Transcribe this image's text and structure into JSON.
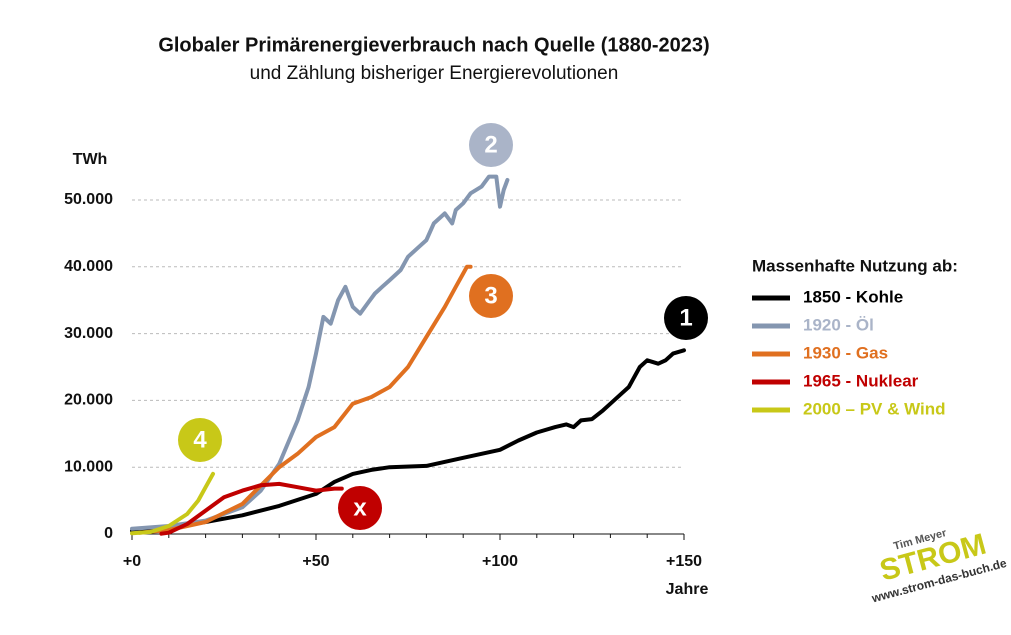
{
  "chart_data": {
    "type": "line",
    "title": "Globaler Primärenergieverbrauch nach Quelle (1880-2023)",
    "subtitle": "und Zählung bisheriger Energierevolutionen",
    "y_label": "TWh",
    "x_label": "Jahre",
    "legend_title": "Massenhafte Nutzung ab:",
    "xlim": [
      0,
      150
    ],
    "ylim": [
      0,
      55000
    ],
    "xticks": [
      {
        "value": 0,
        "label": "+0"
      },
      {
        "value": 50,
        "label": "+50"
      },
      {
        "value": 100,
        "label": "+100"
      },
      {
        "value": 150,
        "label": "+150"
      }
    ],
    "xminor_ticks": [
      10,
      20,
      30,
      40,
      60,
      70,
      80,
      90,
      110,
      120,
      130,
      140
    ],
    "yticks": [
      {
        "value": 0,
        "label": "0"
      },
      {
        "value": 10000,
        "label": "10.000"
      },
      {
        "value": 20000,
        "label": "20.000"
      },
      {
        "value": 30000,
        "label": "30.000"
      },
      {
        "value": 40000,
        "label": "40.000"
      },
      {
        "value": 50000,
        "label": "50.000"
      }
    ],
    "grid": true,
    "series": [
      {
        "name": "1850 - Kohle",
        "color": "#000000",
        "label_color": "#000000",
        "x": [
          0,
          10,
          20,
          30,
          40,
          50,
          55,
          60,
          65,
          70,
          80,
          90,
          100,
          105,
          110,
          115,
          118,
          120,
          122,
          125,
          128,
          130,
          133,
          135,
          138,
          140,
          143,
          145,
          147,
          150
        ],
        "values": [
          500,
          1000,
          1800,
          2800,
          4200,
          6000,
          7800,
          9000,
          9600,
          10000,
          10200,
          11400,
          12600,
          14000,
          15200,
          16000,
          16400,
          16000,
          17000,
          17200,
          18500,
          19500,
          21000,
          22000,
          25000,
          26000,
          25500,
          26000,
          27000,
          27500
        ]
      },
      {
        "name": "1920 - Öl",
        "color": "#8496b0",
        "label_color": "#aab4c8",
        "x": [
          0,
          10,
          20,
          30,
          35,
          40,
          45,
          48,
          50,
          52,
          54,
          56,
          58,
          60,
          62,
          64,
          66,
          68,
          70,
          73,
          75,
          78,
          80,
          82,
          85,
          87,
          88,
          90,
          92,
          95,
          97,
          99,
          100,
          101,
          102
        ],
        "values": [
          800,
          1200,
          2000,
          4000,
          6500,
          10500,
          17000,
          22000,
          27000,
          32500,
          31500,
          35000,
          37000,
          34000,
          33000,
          34500,
          36000,
          37000,
          38000,
          39500,
          41500,
          43000,
          44000,
          46500,
          48000,
          46500,
          48500,
          49500,
          51000,
          52000,
          53500,
          53500,
          49000,
          51500,
          53000
        ]
      },
      {
        "name": "1930 - Gas",
        "color": "#e07020",
        "label_color": "#e07020",
        "x": [
          2,
          10,
          20,
          30,
          40,
          45,
          50,
          55,
          60,
          65,
          70,
          75,
          80,
          85,
          88,
          90,
          91,
          92
        ],
        "values": [
          200,
          600,
          1800,
          4500,
          10000,
          12000,
          14500,
          16000,
          19500,
          20500,
          22000,
          25000,
          29500,
          34000,
          37000,
          39000,
          40000,
          40000
        ]
      },
      {
        "name": "1965 - Nuklear",
        "color": "#c00000",
        "label_color": "#c00000",
        "x": [
          8,
          10,
          15,
          20,
          25,
          30,
          35,
          40,
          45,
          50,
          55,
          57
        ],
        "values": [
          50,
          200,
          1500,
          3500,
          5500,
          6500,
          7300,
          7500,
          7000,
          6500,
          6800,
          6800
        ]
      },
      {
        "name": "2000 – PV & Wind",
        "color": "#c8c818",
        "label_color": "#c8c818",
        "x": [
          0,
          5,
          10,
          15,
          18,
          20,
          22
        ],
        "values": [
          100,
          300,
          1200,
          3000,
          5000,
          7000,
          9000
        ]
      }
    ],
    "annotations": [
      {
        "text": "1",
        "color": "#000000"
      },
      {
        "text": "2",
        "color": "#aab4c8"
      },
      {
        "text": "3",
        "color": "#e07020"
      },
      {
        "text": "x",
        "color": "#c00000"
      },
      {
        "text": "4",
        "color": "#c8c818"
      }
    ],
    "logo": {
      "author": "Tim Meyer",
      "brand": "STROM",
      "url": "www.strom-das-buch.de"
    }
  }
}
